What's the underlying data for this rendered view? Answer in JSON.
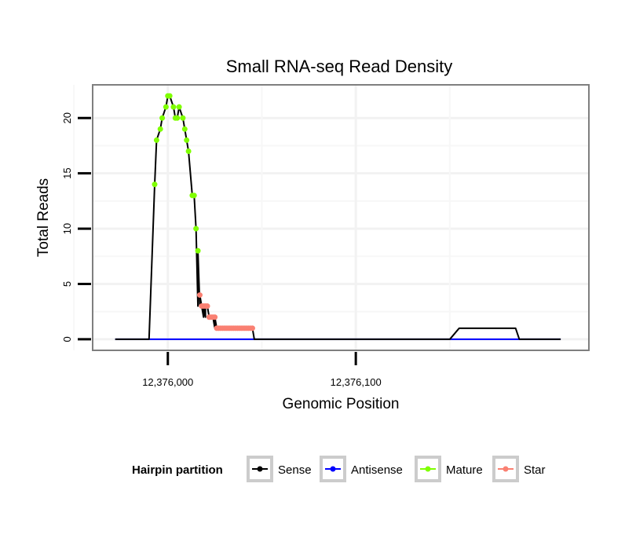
{
  "chart_data": {
    "type": "line",
    "title": "Small RNA-seq Read Density",
    "xlabel": "Genomic Position",
    "ylabel": "Total Reads",
    "xlim": [
      11960,
      12224
    ],
    "ylim": [
      -1,
      23
    ],
    "x_ticks": [
      {
        "value": 12000,
        "label": "12,376,000"
      },
      {
        "value": 12100,
        "label": "12,376,100"
      }
    ],
    "y_ticks": [
      {
        "value": 0,
        "label": "0"
      },
      {
        "value": 5,
        "label": "5"
      },
      {
        "value": 10,
        "label": "10"
      },
      {
        "value": 15,
        "label": "15"
      },
      {
        "value": 20,
        "label": "20"
      }
    ],
    "legend": {
      "title": "Hairpin partition",
      "position": "bottom",
      "entries": [
        {
          "name": "Sense",
          "color": "#000000"
        },
        {
          "name": "Antisense",
          "color": "#0000FF"
        },
        {
          "name": "Mature",
          "color": "#7FFF00"
        },
        {
          "name": "Star",
          "color": "#FA8072"
        }
      ]
    },
    "series": [
      {
        "name": "Sense",
        "color": "#000000",
        "x": [
          11972,
          11975,
          11990,
          12016,
          12017,
          12019,
          12020,
          12025,
          12026,
          12045,
          12046,
          12138,
          12142,
          12150,
          12155,
          12159,
          12185,
          12187,
          12187,
          12209
        ],
        "y": [
          0,
          0,
          0,
          3,
          3,
          2,
          2,
          1,
          1,
          1,
          0,
          0,
          0,
          0,
          1,
          1,
          1,
          0,
          0,
          0
        ]
      },
      {
        "name": "Antisense",
        "color": "#0000FF",
        "x": [
          11972,
          12209
        ],
        "y": [
          0,
          0
        ]
      },
      {
        "name": "Mature",
        "color": "#7FFF00",
        "x": [
          11993,
          11994,
          11996,
          11997,
          11999,
          12000,
          12001,
          12003,
          12004,
          12005,
          12006,
          12008,
          12009,
          12010,
          12011,
          12013,
          12014,
          12015,
          12016
        ],
        "y": [
          14,
          18,
          19,
          20,
          21,
          22,
          22,
          21,
          20,
          20,
          21,
          20,
          19,
          18,
          17,
          13,
          13,
          10,
          8
        ]
      },
      {
        "name": "Star",
        "color": "#FA8072",
        "x": [
          12017,
          12018,
          12019,
          12020,
          12021,
          12022,
          12023,
          12024,
          12025,
          12026,
          12027,
          12028,
          12029,
          12030,
          12031,
          12032,
          12033,
          12034,
          12035,
          12036,
          12037,
          12038,
          12039,
          12040,
          12041,
          12042,
          12043,
          12044,
          12045
        ],
        "y": [
          4,
          3,
          3,
          3,
          3,
          2,
          2,
          2,
          2,
          1,
          1,
          1,
          1,
          1,
          1,
          1,
          1,
          1,
          1,
          1,
          1,
          1,
          1,
          1,
          1,
          1,
          1,
          1,
          1
        ]
      }
    ]
  }
}
